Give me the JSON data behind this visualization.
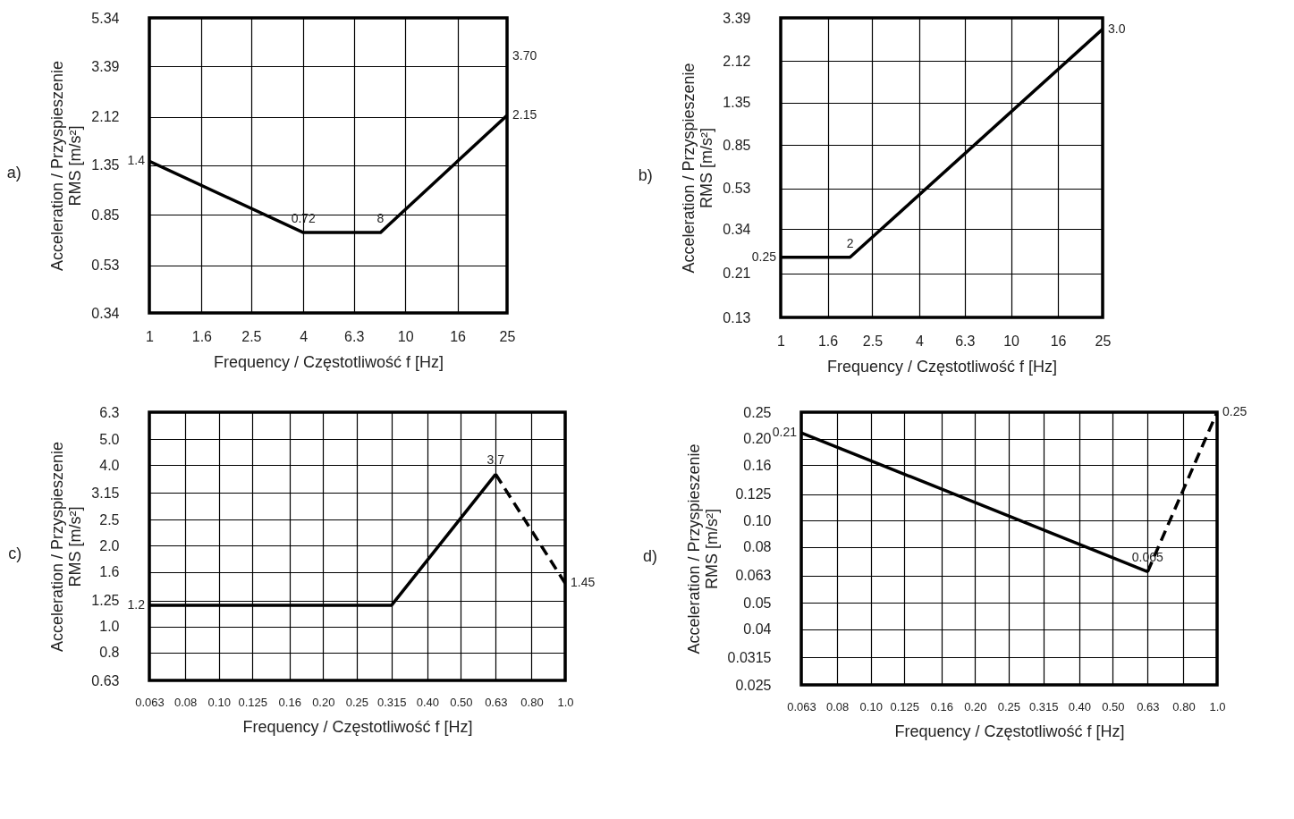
{
  "chart_data": [
    {
      "type": "line",
      "title": "a)",
      "xlabel": "Frequency / Częstotliwość f [Hz]",
      "ylabel": "Acceleration / Przyspieszenie\nRMS [m/s²]",
      "log": "xy",
      "grid": true,
      "xlim": [
        1,
        25
      ],
      "xticks": [
        1,
        1.6,
        2.5,
        4,
        6.3,
        10,
        16,
        25
      ],
      "ylim": [
        0.34,
        5.34
      ],
      "yticks": [
        0.34,
        0.53,
        0.85,
        1.35,
        2.12,
        3.39,
        5.34
      ],
      "series": [
        {
          "color": "#000000",
          "line_style": "solid",
          "x": [
            1,
            4,
            8,
            25
          ],
          "values": [
            1.4,
            0.72,
            0.72,
            2.15
          ]
        }
      ],
      "annotations": [
        {
          "text": "1.4",
          "x": 1,
          "y": 1.4
        },
        {
          "text": "0.72",
          "x": 4,
          "y": 0.72
        },
        {
          "text": "8",
          "x": 8,
          "y": 0.72
        },
        "3.70",
        {
          "text": "2.15",
          "x": 25,
          "y": 2.15
        }
      ]
    },
    {
      "type": "line",
      "title": "b)",
      "xlabel": "Frequency / Częstotliwość f [Hz]",
      "ylabel": "Acceleration / Przyspieszenie\nRMS [m/s²]",
      "log": "xy",
      "grid": true,
      "xlim": [
        1,
        25
      ],
      "xticks": [
        1,
        1.6,
        2.5,
        4,
        6.3,
        10,
        16,
        25
      ],
      "ylim": [
        0.13,
        3.39
      ],
      "yticks": [
        0.13,
        0.21,
        0.34,
        0.53,
        0.85,
        1.35,
        2.12,
        3.39
      ],
      "series": [
        {
          "color": "#000000",
          "line_style": "solid",
          "x": [
            1,
            2,
            25
          ],
          "values": [
            0.25,
            0.25,
            3.0
          ]
        }
      ],
      "annotations": [
        {
          "text": "0.25",
          "x": 1,
          "y": 0.25
        },
        {
          "text": "2",
          "x": 2,
          "y": 0.25
        },
        {
          "text": "3.0",
          "x": 25,
          "y": 3.0
        }
      ]
    },
    {
      "type": "line",
      "title": "c)",
      "xlabel": "Frequency / Częstotliwość f [Hz]",
      "ylabel": "Acceleration / Przyspieszenie\nRMS [m/s²]",
      "log": "xy",
      "grid": true,
      "xlim": [
        0.063,
        1.0
      ],
      "xticks": [
        0.063,
        0.08,
        {
          "value": 0.1,
          "label": "0.10"
        },
        0.125,
        0.16,
        {
          "value": 0.2,
          "label": "0.20"
        },
        0.25,
        0.315,
        {
          "value": 0.4,
          "label": "0.40"
        },
        {
          "value": 0.5,
          "label": "0.50"
        },
        0.63,
        {
          "value": 0.8,
          "label": "0.80"
        },
        {
          "value": 1.0,
          "label": "1.0"
        }
      ],
      "ylim": [
        0.63,
        6.3
      ],
      "yticks": [
        0.63,
        0.8,
        {
          "value": 1.0,
          "label": "1.0"
        },
        1.25,
        1.6,
        {
          "value": 2.0,
          "label": "2.0"
        },
        2.5,
        3.15,
        {
          "value": 4.0,
          "label": "4.0"
        },
        {
          "value": 5.0,
          "label": "5.0"
        },
        6.3
      ],
      "series": [
        {
          "color": "#000000",
          "line_style": "solid",
          "x": [
            0.063,
            0.315,
            0.63
          ],
          "values": [
            1.2,
            1.2,
            3.7
          ]
        },
        {
          "color": "#000000",
          "line_style": "dashed",
          "x": [
            0.63,
            1.0
          ],
          "values": [
            3.7,
            1.45
          ]
        }
      ],
      "annotations": [
        {
          "text": "1.2",
          "x": 0.063,
          "y": 1.2
        },
        {
          "text": "3.7",
          "x": 0.63,
          "y": 3.7
        },
        {
          "text": "1.45",
          "x": 1.0,
          "y": 1.45
        }
      ]
    },
    {
      "type": "line",
      "title": "d)",
      "xlabel": "Frequency / Częstotliwość f [Hz]",
      "ylabel": "Acceleration / Przyspieszenie\nRMS [m/s²]",
      "log": "xy",
      "grid": true,
      "xlim": [
        0.063,
        1.0
      ],
      "xticks": [
        0.063,
        0.08,
        {
          "value": 0.1,
          "label": "0.10"
        },
        0.125,
        0.16,
        {
          "value": 0.2,
          "label": "0.20"
        },
        0.25,
        0.315,
        {
          "value": 0.4,
          "label": "0.40"
        },
        {
          "value": 0.5,
          "label": "0.50"
        },
        0.63,
        {
          "value": 0.8,
          "label": "0.80"
        },
        {
          "value": 1.0,
          "label": "1.0"
        }
      ],
      "ylim": [
        0.025,
        0.25
      ],
      "yticks": [
        0.025,
        0.0315,
        0.04,
        0.05,
        0.063,
        0.08,
        {
          "value": 0.1,
          "label": "0.10"
        },
        0.125,
        0.16,
        {
          "value": 0.2,
          "label": "0.20"
        },
        0.25
      ],
      "series": [
        {
          "color": "#000000",
          "line_style": "solid",
          "x": [
            0.063,
            0.63
          ],
          "values": [
            0.21,
            0.065
          ]
        },
        {
          "color": "#000000",
          "line_style": "dashed",
          "x": [
            0.63,
            1.0
          ],
          "values": [
            0.065,
            0.25
          ]
        }
      ],
      "annotations": [
        {
          "text": "0.21",
          "x": 0.063,
          "y": 0.21
        },
        {
          "text": "0.25",
          "x": 1.0,
          "y": 0.25
        },
        {
          "text": "0.065",
          "x": 0.63,
          "y": 0.065
        }
      ]
    }
  ]
}
